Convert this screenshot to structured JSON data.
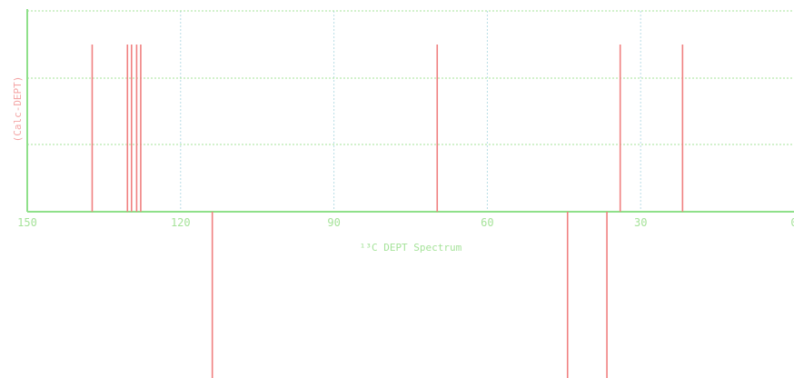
{
  "chart_data": {
    "type": "bar",
    "subtype": "nmr-stick-spectrum",
    "xlabel": "¹³C DEPT Spectrum",
    "ylabel": "(Calc-DEPT)",
    "x_axis": {
      "reversed": true,
      "range": [
        150,
        0
      ],
      "ticks": [
        150,
        120,
        90,
        60,
        30,
        0
      ]
    },
    "grid": true,
    "colors": {
      "peaks": "#f08080",
      "axis": "#8fe08a",
      "grid_x": "#b8dde6",
      "grid_y": "#a6e39a",
      "labels": "#a6e39a",
      "ylabel": "#f4a5a5"
    },
    "series": [
      {
        "direction": "up",
        "x": [
          137.3,
          130.4,
          129.6,
          128.6,
          127.8,
          69.8,
          34.0,
          21.8
        ],
        "values": [
          1,
          1,
          1,
          1,
          1,
          1,
          1,
          1
        ]
      },
      {
        "direction": "down",
        "x": [
          113.8,
          44.3,
          36.6
        ],
        "values": [
          -1,
          -1,
          -1
        ]
      }
    ]
  }
}
